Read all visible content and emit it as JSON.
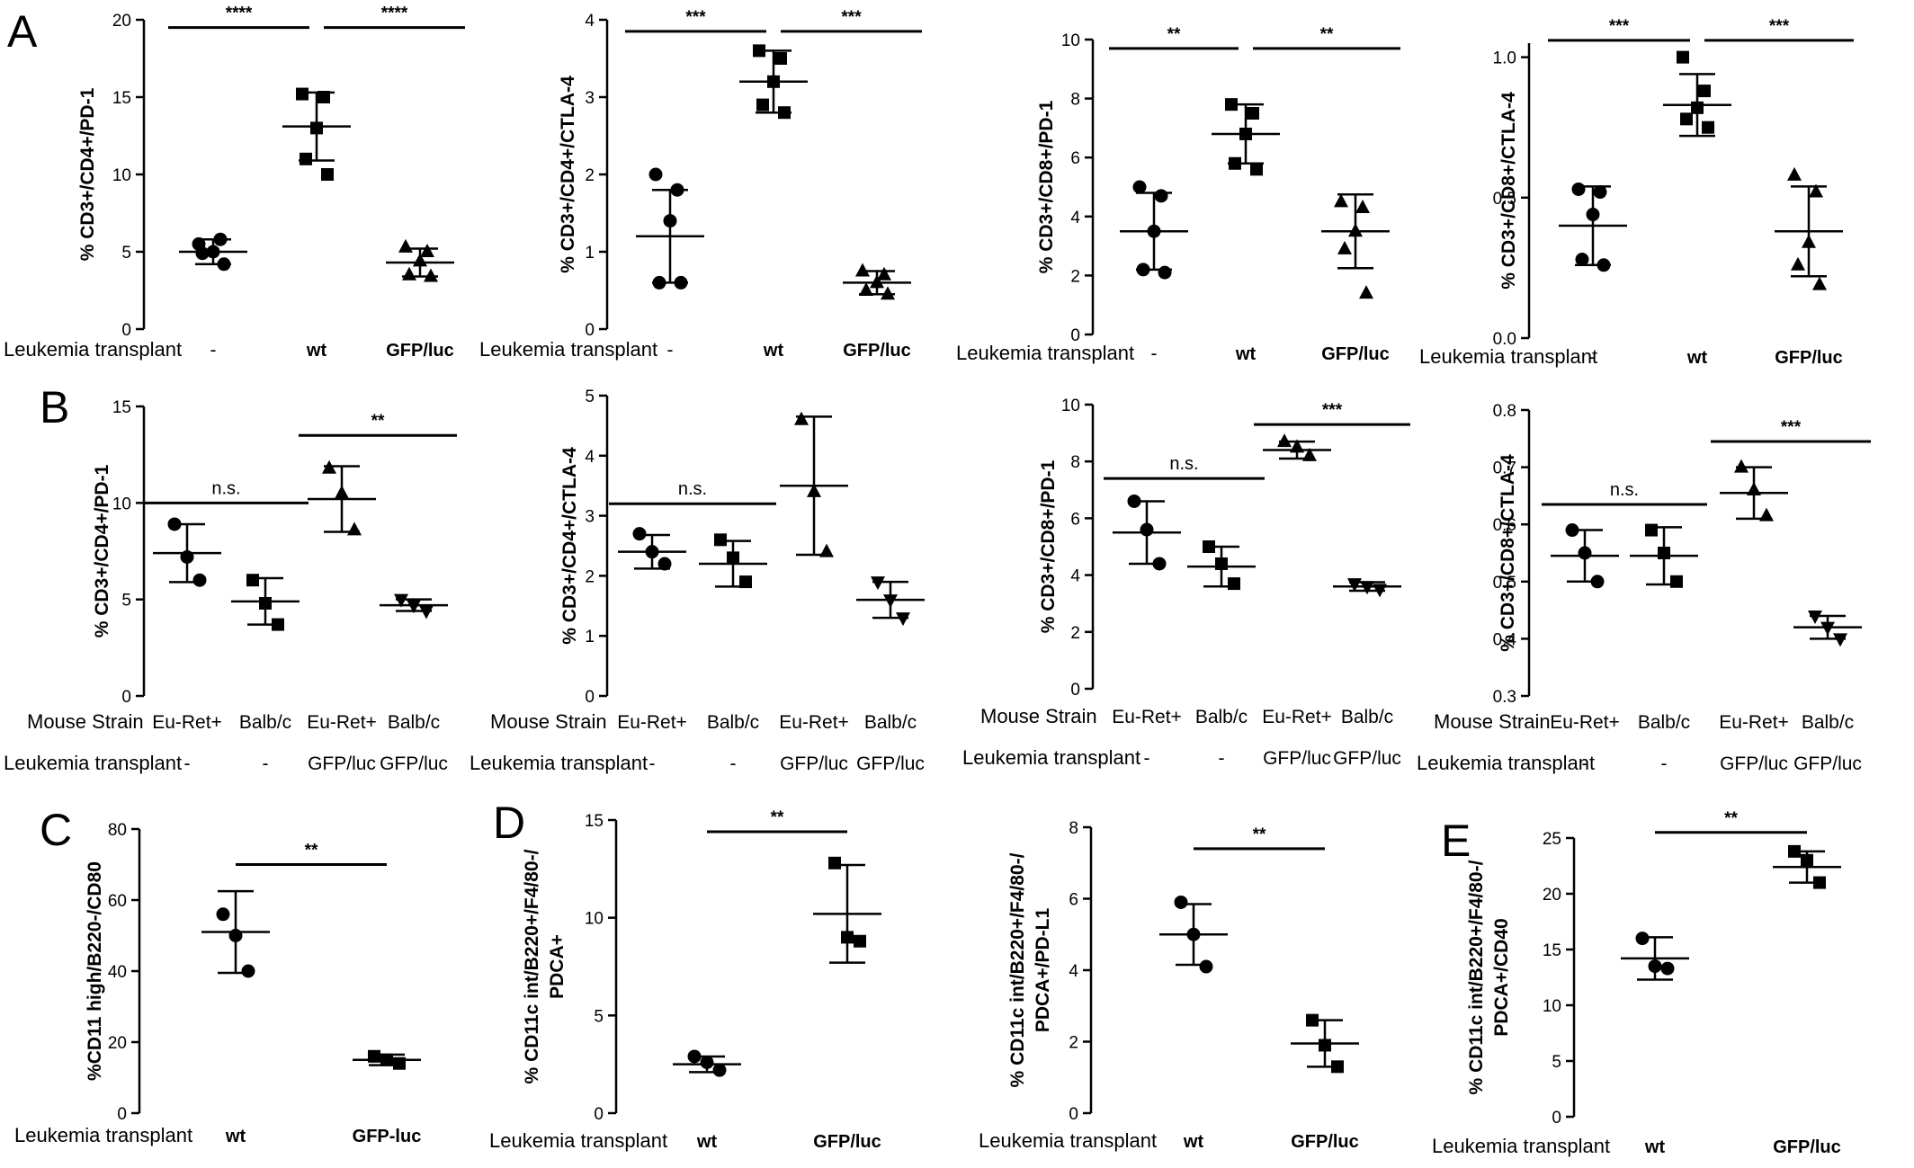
{
  "letters": [
    "A",
    "B",
    "C",
    "D",
    "E"
  ],
  "chart_data": [
    {
      "type": "scatter",
      "panel": "A",
      "letter": "A",
      "ylabel": [
        "% CD3+/CD4+/PD-1"
      ],
      "ylim": [
        0,
        20
      ],
      "yticks": [
        "0",
        "5",
        "10",
        "15",
        "20"
      ],
      "rows": [
        {
          "label": "Leukemia transplant",
          "values": [
            "-",
            "wt",
            "GFP/luc"
          ],
          "bold": [
            false,
            true,
            true
          ]
        }
      ],
      "groups": [
        {
          "marker": "circle",
          "mean": 5.0,
          "sd": 0.8,
          "points": [
            5.5,
            5.8,
            5.0,
            4.9,
            4.2
          ]
        },
        {
          "marker": "square",
          "mean": 13.1,
          "sd": 2.2,
          "points": [
            15.2,
            15.0,
            13.0,
            11.0,
            10.0
          ]
        },
        {
          "marker": "triangle",
          "mean": 4.3,
          "sd": 0.9,
          "points": [
            5.3,
            5.0,
            4.4,
            3.5,
            3.4
          ]
        }
      ],
      "sig": [
        {
          "from": 0,
          "to": 1,
          "label": "****",
          "y": 19.5
        },
        {
          "from": 1,
          "to": 2,
          "label": "****",
          "y": 19.5
        }
      ]
    },
    {
      "type": "scatter",
      "panel": "A",
      "ylabel": [
        "% CD3+/CD4+/CTLA-4"
      ],
      "ylim": [
        0,
        4
      ],
      "yticks": [
        "0",
        "1",
        "2",
        "3",
        "4"
      ],
      "rows": [
        {
          "label": "Leukemia transplant",
          "values": [
            "-",
            "wt",
            "GFP/luc"
          ],
          "bold": [
            false,
            true,
            true
          ]
        }
      ],
      "groups": [
        {
          "marker": "circle",
          "mean": 1.2,
          "sd": 0.6,
          "points": [
            2.0,
            1.8,
            1.4,
            0.6,
            0.6
          ]
        },
        {
          "marker": "square",
          "mean": 3.2,
          "sd": 0.4,
          "points": [
            3.6,
            3.5,
            3.2,
            2.9,
            2.8
          ]
        },
        {
          "marker": "triangle",
          "mean": 0.6,
          "sd": 0.15,
          "points": [
            0.75,
            0.7,
            0.6,
            0.5,
            0.45
          ]
        }
      ],
      "sig": [
        {
          "from": 0,
          "to": 1,
          "label": "***",
          "y": 3.85
        },
        {
          "from": 1,
          "to": 2,
          "label": "***",
          "y": 3.85
        }
      ]
    },
    {
      "type": "scatter",
      "panel": "A",
      "ylabel": [
        "% CD3+/CD8+/PD-1"
      ],
      "ylim": [
        0,
        10
      ],
      "yticks": [
        "0",
        "2",
        "4",
        "6",
        "8",
        "10"
      ],
      "rows": [
        {
          "label": "Leukemia transplant",
          "values": [
            "-",
            "wt",
            "GFP/luc"
          ],
          "bold": [
            false,
            true,
            true
          ]
        }
      ],
      "groups": [
        {
          "marker": "circle",
          "mean": 3.5,
          "sd": 1.3,
          "points": [
            5.0,
            4.7,
            3.5,
            2.2,
            2.1
          ]
        },
        {
          "marker": "square",
          "mean": 6.8,
          "sd": 1.0,
          "points": [
            7.8,
            7.5,
            6.8,
            5.8,
            5.6
          ]
        },
        {
          "marker": "triangle",
          "mean": 3.5,
          "sd": 1.25,
          "points": [
            4.5,
            4.3,
            3.5,
            2.9,
            1.4
          ]
        }
      ],
      "sig": [
        {
          "from": 0,
          "to": 1,
          "label": "**",
          "y": 9.7
        },
        {
          "from": 1,
          "to": 2,
          "label": "**",
          "y": 9.7
        }
      ]
    },
    {
      "type": "scatter",
      "panel": "A",
      "ylabel": [
        "% CD3+/CD8+/CTLA-4"
      ],
      "ylim": [
        0,
        1.05
      ],
      "yticks": [
        "0.0",
        "0.5",
        "1.0"
      ],
      "ytickvals": [
        0,
        0.5,
        1.0
      ],
      "rows": [
        {
          "label": "Leukemia transplant",
          "values": [
            "-",
            "wt",
            "GFP/luc"
          ],
          "bold": [
            false,
            true,
            true
          ]
        }
      ],
      "groups": [
        {
          "marker": "circle",
          "mean": 0.4,
          "sd": 0.14,
          "points": [
            0.53,
            0.52,
            0.44,
            0.28,
            0.26
          ]
        },
        {
          "marker": "square",
          "mean": 0.83,
          "sd": 0.11,
          "points": [
            1.0,
            0.88,
            0.82,
            0.78,
            0.75
          ]
        },
        {
          "marker": "triangle",
          "mean": 0.38,
          "sd": 0.16,
          "points": [
            0.58,
            0.52,
            0.34,
            0.26,
            0.19
          ]
        }
      ],
      "sig": [
        {
          "from": 0,
          "to": 1,
          "label": "***",
          "y": 1.06
        },
        {
          "from": 1,
          "to": 2,
          "label": "***",
          "y": 1.06
        }
      ]
    },
    {
      "type": "scatter",
      "panel": "B",
      "letter": "B",
      "ylabel": [
        "% CD3+/CD4+/PD-1"
      ],
      "ylim": [
        0,
        15
      ],
      "yticks": [
        "0",
        "5",
        "10",
        "15"
      ],
      "rows": [
        {
          "label": "Mouse Strain",
          "values": [
            "Eu-Ret+",
            "Balb/c",
            "Eu-Ret+",
            "Balb/c"
          ]
        },
        {
          "label": "Leukemia transplant",
          "values": [
            "-",
            "-",
            "GFP/luc",
            "GFP/luc"
          ]
        }
      ],
      "groups": [
        {
          "marker": "circle",
          "mean": 7.4,
          "sd": 1.5,
          "points": [
            8.9,
            7.2,
            6.0
          ]
        },
        {
          "marker": "square",
          "mean": 4.9,
          "sd": 1.2,
          "points": [
            6.0,
            4.8,
            3.7
          ]
        },
        {
          "marker": "triangle",
          "mean": 10.2,
          "sd": 1.7,
          "points": [
            11.8,
            10.5,
            8.6
          ]
        },
        {
          "marker": "triangle-down",
          "mean": 4.7,
          "sd": 0.3,
          "points": [
            5.0,
            4.7,
            4.4
          ]
        }
      ],
      "sig": [
        {
          "from": 0,
          "to": 1,
          "label": "n.s.",
          "y": 10.0
        },
        {
          "from": 2,
          "to": 3,
          "label": "**",
          "y": 13.5
        }
      ]
    },
    {
      "type": "scatter",
      "panel": "B",
      "ylabel": [
        "% CD3+/CD4+/CTLA-4"
      ],
      "ylim": [
        0,
        5
      ],
      "yticks": [
        "0",
        "1",
        "2",
        "3",
        "4",
        "5"
      ],
      "rows": [
        {
          "label": "Mouse Strain",
          "values": [
            "Eu-Ret+",
            "Balb/c",
            "Eu-Ret+",
            "Balb/c"
          ]
        },
        {
          "label": "Leukemia transplant",
          "values": [
            "-",
            "-",
            "GFP/luc",
            "GFP/luc"
          ]
        }
      ],
      "groups": [
        {
          "marker": "circle",
          "mean": 2.4,
          "sd": 0.28,
          "points": [
            2.7,
            2.4,
            2.2
          ]
        },
        {
          "marker": "square",
          "mean": 2.2,
          "sd": 0.38,
          "points": [
            2.6,
            2.3,
            1.9
          ]
        },
        {
          "marker": "triangle",
          "mean": 3.5,
          "sd": 1.15,
          "points": [
            4.6,
            3.4,
            2.4
          ]
        },
        {
          "marker": "triangle-down",
          "mean": 1.6,
          "sd": 0.3,
          "points": [
            1.9,
            1.6,
            1.3
          ]
        }
      ],
      "sig": [
        {
          "from": 0,
          "to": 1,
          "label": "n.s.",
          "y": 3.2
        }
      ]
    },
    {
      "type": "scatter",
      "panel": "B",
      "ylabel": [
        "% CD3+/CD8+/PD-1"
      ],
      "ylim": [
        0,
        10
      ],
      "yticks": [
        "0",
        "2",
        "4",
        "6",
        "8",
        "10"
      ],
      "rows": [
        {
          "label": "Mouse Strain",
          "values": [
            "Eu-Ret+",
            "Balb/c",
            "Eu-Ret+",
            "Balb/c"
          ]
        },
        {
          "label": "Leukemia transplant",
          "values": [
            "-",
            "-",
            "GFP/luc",
            "GFP/luc"
          ]
        }
      ],
      "groups": [
        {
          "marker": "circle",
          "mean": 5.5,
          "sd": 1.1,
          "points": [
            6.6,
            5.6,
            4.4
          ]
        },
        {
          "marker": "square",
          "mean": 4.3,
          "sd": 0.7,
          "points": [
            5.0,
            4.4,
            3.7
          ]
        },
        {
          "marker": "triangle",
          "mean": 8.4,
          "sd": 0.3,
          "points": [
            8.7,
            8.5,
            8.2
          ]
        },
        {
          "marker": "triangle-down",
          "mean": 3.6,
          "sd": 0.15,
          "points": [
            3.7,
            3.6,
            3.5
          ]
        }
      ],
      "sig": [
        {
          "from": 0,
          "to": 1,
          "label": "n.s.",
          "y": 7.4
        },
        {
          "from": 2,
          "to": 3,
          "label": "***",
          "y": 9.3
        }
      ]
    },
    {
      "type": "scatter",
      "panel": "B",
      "ylabel": [
        "% CD3+/CD8+/CTLA-4"
      ],
      "ylim": [
        0.3,
        0.8
      ],
      "yticks": [
        "0.3",
        "0.4",
        "0.5",
        "0.6",
        "0.7",
        "0.8"
      ],
      "ytickvals": [
        0.3,
        0.4,
        0.5,
        0.6,
        0.7,
        0.8
      ],
      "rows": [
        {
          "label": "Mouse Strain",
          "values": [
            "Eu-Ret+",
            "Balb/c",
            "Eu-Ret+",
            "Balb/c"
          ]
        },
        {
          "label": "Leukemia transplant",
          "values": [
            "-",
            "-",
            "GFP/luc",
            "GFP/luc"
          ]
        }
      ],
      "groups": [
        {
          "marker": "circle",
          "mean": 0.545,
          "sd": 0.045,
          "points": [
            0.59,
            0.55,
            0.5
          ]
        },
        {
          "marker": "square",
          "mean": 0.545,
          "sd": 0.05,
          "points": [
            0.59,
            0.55,
            0.5
          ]
        },
        {
          "marker": "triangle",
          "mean": 0.655,
          "sd": 0.045,
          "points": [
            0.7,
            0.66,
            0.615
          ]
        },
        {
          "marker": "triangle-down",
          "mean": 0.42,
          "sd": 0.02,
          "points": [
            0.44,
            0.42,
            0.4
          ]
        }
      ],
      "sig": [
        {
          "from": 0,
          "to": 1,
          "label": "n.s.",
          "y": 0.635
        },
        {
          "from": 2,
          "to": 3,
          "label": "***",
          "y": 0.745
        }
      ]
    },
    {
      "type": "scatter",
      "panel": "C",
      "letter": "C",
      "ylabel": [
        "%CD11 high/B220-/CD80"
      ],
      "ylim": [
        0,
        80
      ],
      "yticks": [
        "0",
        "20",
        "40",
        "60",
        "80"
      ],
      "rows": [
        {
          "label": "Leukemia transplant",
          "values": [
            "wt",
            "GFP-luc"
          ],
          "bold": [
            true,
            true
          ]
        }
      ],
      "groups": [
        {
          "marker": "circle",
          "mean": 51,
          "sd": 11.5,
          "points": [
            56,
            50,
            40
          ]
        },
        {
          "marker": "square",
          "mean": 15,
          "sd": 1.5,
          "points": [
            16,
            15,
            14
          ]
        }
      ],
      "sig": [
        {
          "from": 0,
          "to": 1,
          "label": "**",
          "y": 70
        }
      ]
    },
    {
      "type": "scatter",
      "panel": "D",
      "letter": "D",
      "ylabel": [
        "% CD11c int/B220+/F4/80-/",
        "PDCA+"
      ],
      "ylim": [
        0,
        15
      ],
      "yticks": [
        "0",
        "5",
        "10",
        "15"
      ],
      "rows": [
        {
          "label": "Leukemia transplant",
          "values": [
            "wt",
            "GFP/luc"
          ],
          "bold": [
            true,
            true
          ]
        }
      ],
      "groups": [
        {
          "marker": "circle",
          "mean": 2.5,
          "sd": 0.4,
          "points": [
            2.9,
            2.6,
            2.2
          ]
        },
        {
          "marker": "square",
          "mean": 10.2,
          "sd": 2.5,
          "points": [
            12.8,
            9.0,
            8.8
          ]
        }
      ],
      "sig": [
        {
          "from": 0,
          "to": 1,
          "label": "**",
          "y": 14.4
        }
      ]
    },
    {
      "type": "scatter",
      "panel": "D",
      "ylabel": [
        "% CD11c int/B220+/F4/80-/",
        "PDCA+/PD-L1"
      ],
      "ylim": [
        0,
        8
      ],
      "yticks": [
        "0",
        "2",
        "4",
        "6",
        "8"
      ],
      "rows": [
        {
          "label": "Leukemia transplant",
          "values": [
            "wt",
            "GFP/luc"
          ],
          "bold": [
            true,
            true
          ]
        }
      ],
      "groups": [
        {
          "marker": "circle",
          "mean": 5.0,
          "sd": 0.85,
          "points": [
            5.9,
            5.0,
            4.1
          ]
        },
        {
          "marker": "square",
          "mean": 1.95,
          "sd": 0.65,
          "points": [
            2.6,
            1.9,
            1.3
          ]
        }
      ],
      "sig": [
        {
          "from": 0,
          "to": 1,
          "label": "**",
          "y": 7.4
        }
      ]
    },
    {
      "type": "scatter",
      "panel": "E",
      "letter": "E",
      "ylabel": [
        "% CD11c int/B220+/F4/80-/",
        "PDCA+/CD40"
      ],
      "ylim": [
        0,
        25
      ],
      "yticks": [
        "0",
        "5",
        "10",
        "15",
        "20",
        "25"
      ],
      "rows": [
        {
          "label": "Leukemia transplant",
          "values": [
            "wt",
            "GFP/luc"
          ],
          "bold": [
            true,
            true
          ]
        }
      ],
      "groups": [
        {
          "marker": "circle",
          "mean": 14.2,
          "sd": 1.9,
          "points": [
            16.0,
            13.5,
            13.3
          ]
        },
        {
          "marker": "square",
          "mean": 22.4,
          "sd": 1.4,
          "points": [
            23.8,
            23.0,
            21.0
          ]
        }
      ],
      "sig": [
        {
          "from": 0,
          "to": 1,
          "label": "**",
          "y": 25.5
        }
      ]
    }
  ]
}
